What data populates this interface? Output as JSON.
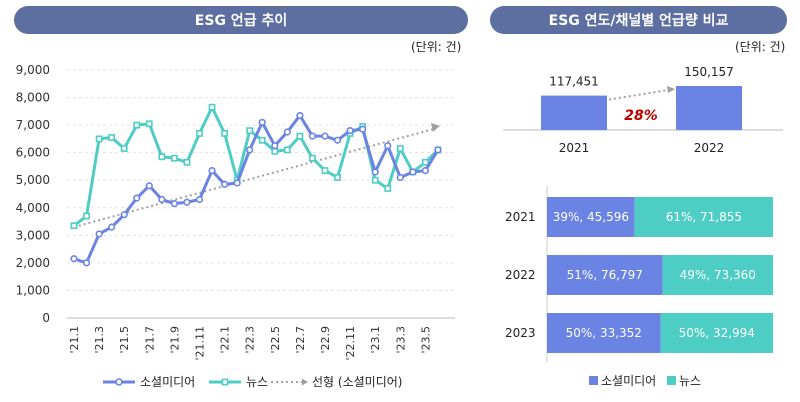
{
  "left_panel": {
    "title": "ESG 언급 추이",
    "unit": "(단위: 건)"
  },
  "right_panel": {
    "title": "ESG 연도/채널별 언급량 비교",
    "unit": "(단위: 건)"
  },
  "colors": {
    "social": "#6b83e3",
    "news": "#4ecdc4",
    "trend": "#a0a0a0",
    "growth": "#c00000",
    "header": "#5d6fa0"
  },
  "chart_data": [
    {
      "type": "line",
      "title": "ESG 언급 추이",
      "ylim": [
        0,
        9000
      ],
      "yticks": [
        "0",
        "1,000",
        "2,000",
        "3,000",
        "4,000",
        "5,000",
        "6,000",
        "7,000",
        "8,000",
        "9,000"
      ],
      "x": [
        "'21.1",
        "'21.2",
        "'21.3",
        "'21.4",
        "'21.5",
        "'21.6",
        "'21.7",
        "'21.8",
        "'21.9",
        "'21.10",
        "'21.11",
        "'21.12",
        "'22.1",
        "'22.2",
        "'22.3",
        "'22.4",
        "'22.5",
        "'22.6",
        "'22.7",
        "'22.8",
        "'22.9",
        "'22.10",
        "'22.11",
        "'22.12",
        "'23.1",
        "'23.2",
        "'23.3",
        "'23.4",
        "'23.5",
        "'23.6"
      ],
      "xtick_labels": [
        "'21.1",
        "'21.3",
        "'21.5",
        "'21.7",
        "'21.9",
        "'21.11",
        "'22.1",
        "'22.3",
        "'22.5",
        "'22.7",
        "'22.9",
        "'22.11",
        "'23.1",
        "'23.3",
        "'23.5"
      ],
      "series": [
        {
          "name": "소셜미디어",
          "values": [
            2150,
            2000,
            3050,
            3300,
            3750,
            4350,
            4800,
            4300,
            4150,
            4200,
            4300,
            5350,
            4850,
            4900,
            6100,
            7100,
            6250,
            6750,
            7350,
            6600,
            6600,
            6450,
            6800,
            6850,
            5300,
            6250,
            5100,
            5300,
            5350,
            6100
          ]
        },
        {
          "name": "뉴스",
          "values": [
            3350,
            3700,
            6500,
            6550,
            6150,
            7000,
            7050,
            5850,
            5800,
            5650,
            6700,
            7650,
            6700,
            5000,
            6800,
            6450,
            6050,
            6100,
            6600,
            5800,
            5350,
            5100,
            6700,
            6950,
            5000,
            4700,
            6150,
            5300,
            5650,
            6100
          ]
        }
      ],
      "trend": {
        "name": "선형 (소셜미디어)",
        "start": 3300,
        "end": 6900
      },
      "legend_position": "bottom"
    },
    {
      "type": "bar",
      "categories": [
        "2021",
        "2022"
      ],
      "values": [
        117451,
        150157
      ],
      "value_labels": [
        "117,451",
        "150,157"
      ],
      "growth_label": "28%"
    },
    {
      "type": "bar",
      "orientation": "horizontal-stacked-100",
      "categories": [
        "2021",
        "2022",
        "2023"
      ],
      "series": [
        {
          "name": "소셜미디어",
          "values": [
            45596,
            76797,
            33352
          ],
          "labels": [
            "39%, 45,596",
            "51%, 76,797",
            "50%, 33,352"
          ]
        },
        {
          "name": "뉴스",
          "values": [
            71855,
            73360,
            32994
          ],
          "labels": [
            "61%, 71,855",
            "49%, 73,360",
            "50%, 32,994"
          ]
        }
      ],
      "legend_position": "bottom"
    }
  ]
}
